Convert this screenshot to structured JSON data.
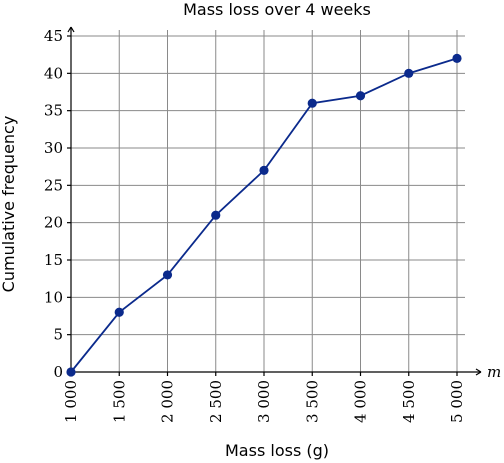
{
  "chart_data": {
    "type": "line",
    "title": "Mass loss over 4 weeks",
    "xlabel": "Mass loss (g)",
    "ylabel": "Cumulative frequency",
    "x_axis_variable": "m",
    "xlim": [
      1000,
      5000
    ],
    "ylim": [
      0,
      45
    ],
    "x_ticks": [
      1000,
      1500,
      2000,
      2500,
      3000,
      3500,
      4000,
      4500,
      5000
    ],
    "x_tick_labels": [
      "1 000",
      "1 500",
      "2 000",
      "2 500",
      "3 000",
      "3 500",
      "4 000",
      "4 500",
      "5 000"
    ],
    "y_ticks": [
      0,
      5,
      10,
      15,
      20,
      25,
      30,
      35,
      40,
      45
    ],
    "y_tick_labels": [
      "0",
      "5",
      "10",
      "15",
      "20",
      "25",
      "30",
      "35",
      "40",
      "45"
    ],
    "grid": true,
    "series": [
      {
        "x": [
          1000,
          1500,
          2000,
          2500,
          3000,
          3500,
          4000,
          4500,
          5000
        ],
        "y": [
          0,
          8,
          13,
          21,
          27,
          36,
          37,
          40,
          42
        ],
        "color": "#0b2a8c"
      }
    ]
  }
}
